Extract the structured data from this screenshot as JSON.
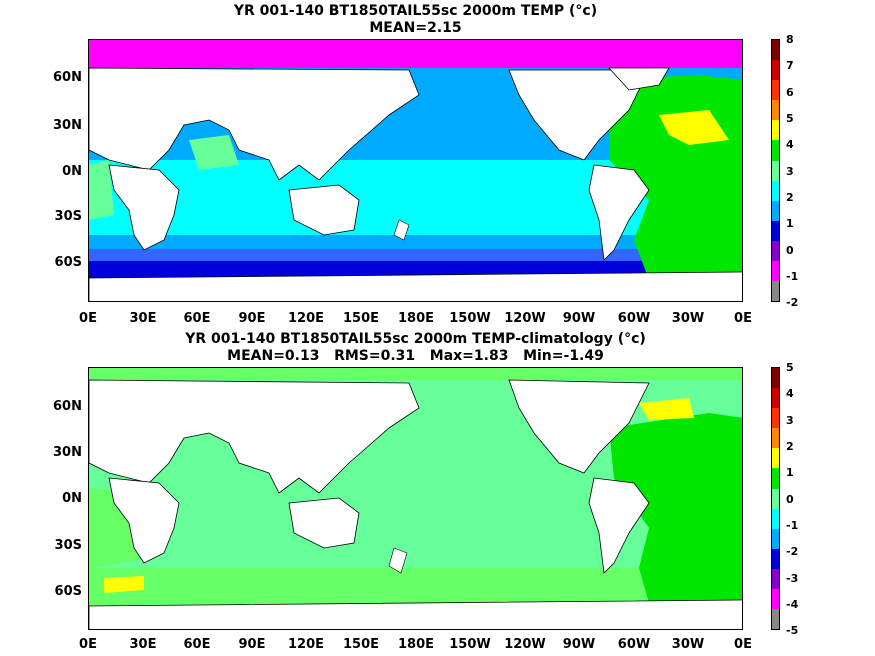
{
  "panels": [
    {
      "title": "YR 001-140 BT1850TAIL55sc 2000m TEMP (°c)",
      "subtitle": "MEAN=2.15",
      "colorbar_labels": [
        "8",
        "7",
        "6",
        "5",
        "4",
        "3",
        "2",
        "1",
        "0",
        "-1",
        "-2"
      ],
      "colorbar_colors": [
        "#800000",
        "#cc0000",
        "#ff3300",
        "#ff8800",
        "#ffff00",
        "#00e600",
        "#66ff99",
        "#00ffff",
        "#00aaff",
        "#0000dd",
        "#8800cc",
        "#ff00ff",
        "#888888"
      ]
    },
    {
      "title": "YR 001-140 BT1850TAIL55sc 2000m TEMP-climatology (°c)",
      "subtitle": "MEAN=0.13   RMS=0.31   Max=1.83   Min=-1.49",
      "colorbar_labels": [
        "5",
        "4",
        "3",
        "2",
        "1",
        "0",
        "-1",
        "-2",
        "-3",
        "-4",
        "-5"
      ],
      "colorbar_colors": [
        "#800000",
        "#cc0000",
        "#ff3300",
        "#ff8800",
        "#ffff00",
        "#00e600",
        "#66ff99",
        "#00ffff",
        "#00aaff",
        "#0000dd",
        "#8800cc",
        "#ff00ff",
        "#888888"
      ]
    }
  ],
  "lat_labels": [
    "60N",
    "30N",
    "0N",
    "30S",
    "60S"
  ],
  "lon_labels": [
    "0E",
    "30E",
    "60E",
    "90E",
    "120E",
    "150E",
    "180E",
    "150W",
    "120W",
    "90W",
    "60W",
    "30W",
    "0E"
  ],
  "fill_colors": {
    "magenta": "#ff00ff",
    "blue": "#0000dd",
    "mid_blue": "#3366ff",
    "sky": "#00aaff",
    "cyan": "#00ffff",
    "aqua": "#66ff99",
    "green": "#00e600",
    "light_green": "#66ff66",
    "yellow": "#ffff00",
    "land": "#ffffff"
  }
}
